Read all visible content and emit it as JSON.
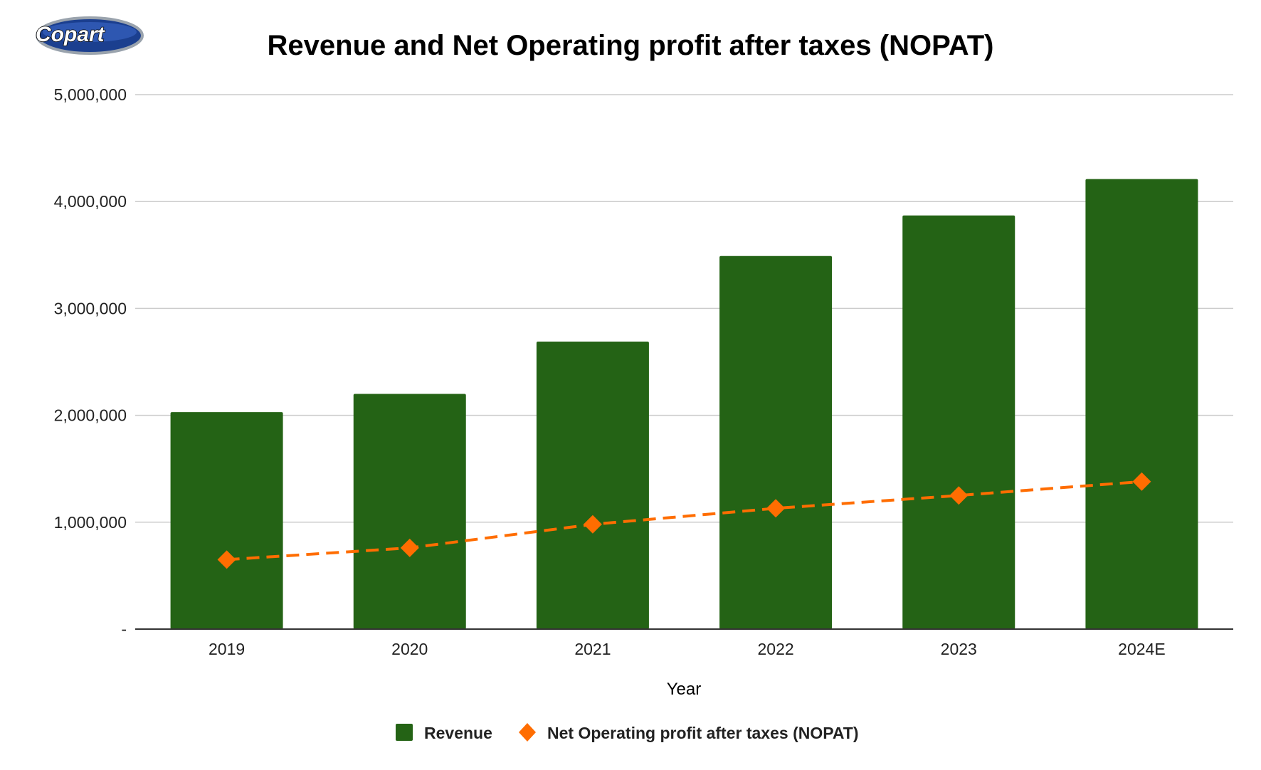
{
  "logo": {
    "text": "Copart"
  },
  "chart_data": {
    "type": "bar",
    "title": "Revenue and Net Operating profit after taxes (NOPAT)",
    "xlabel": "Year",
    "ylabel": "",
    "categories": [
      "2019",
      "2020",
      "2021",
      "2022",
      "2023",
      "2024E"
    ],
    "ylim": [
      0,
      5000000
    ],
    "yticks": [
      0,
      1000000,
      2000000,
      3000000,
      4000000,
      5000000
    ],
    "ytick_labels": [
      "-",
      "1,000,000",
      "2,000,000",
      "3,000,000",
      "4,000,000",
      "5,000,000"
    ],
    "grid": true,
    "legend_position": "bottom",
    "series": [
      {
        "name": "Revenue",
        "type": "bar",
        "color": "#246315",
        "values": [
          2030000,
          2200000,
          2690000,
          3490000,
          3870000,
          4210000
        ]
      },
      {
        "name": "Net Operating profit after taxes (NOPAT)",
        "type": "line",
        "color": "#FF6D01",
        "line_style": "dashed",
        "marker": "diamond",
        "values": [
          650000,
          760000,
          980000,
          1130000,
          1250000,
          1380000
        ]
      }
    ]
  }
}
